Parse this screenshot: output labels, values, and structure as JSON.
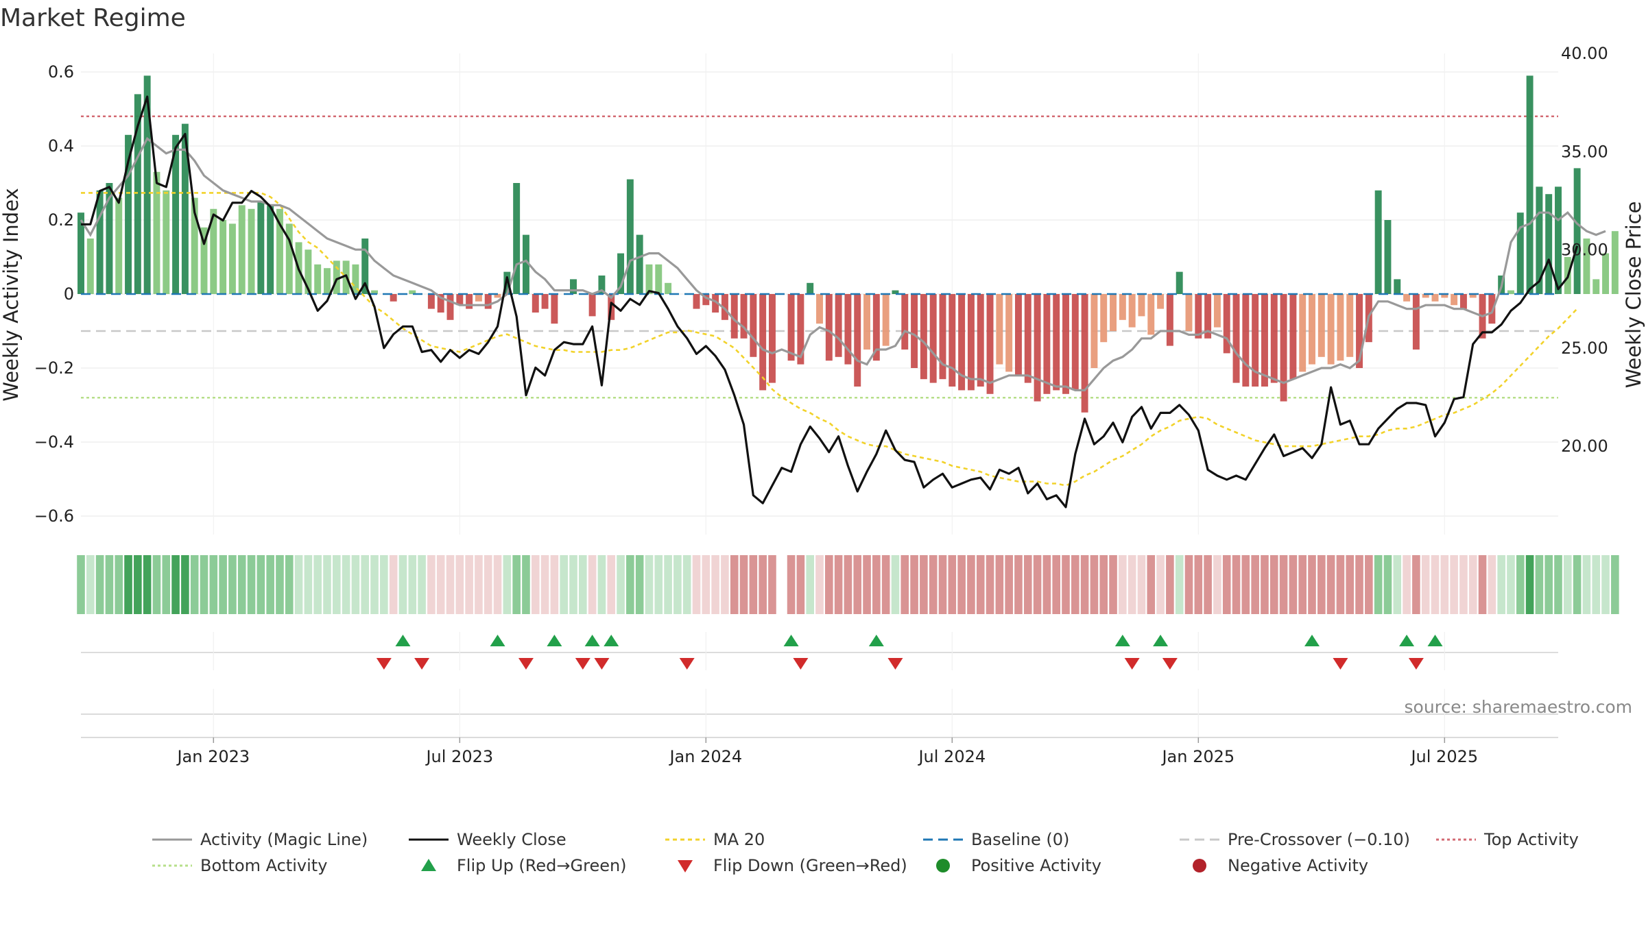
{
  "chart_data": {
    "type": "bar",
    "title": "Market Regime",
    "ylabel_left": "Weekly Activity Index",
    "ylabel_right": "Weekly Close Price",
    "source": "source: sharemaestro.com",
    "y_left": {
      "range": [
        -0.65,
        0.65
      ],
      "ticks": [
        0.6,
        0.4,
        0.2,
        0,
        -0.2,
        -0.4,
        -0.6
      ],
      "tick_labels": [
        "0.6",
        "0.4",
        "0.2",
        "0",
        "−0.2",
        "−0.4",
        "−0.6"
      ]
    },
    "y_right": {
      "range": [
        15.5,
        40.0
      ],
      "ticks": [
        40,
        35,
        30,
        25,
        20
      ],
      "tick_labels": [
        "40.00",
        "35.00",
        "30.00",
        "25.00",
        "20.00"
      ]
    },
    "x_range_weeks": [
      0,
      156
    ],
    "x_ticks": [
      {
        "label": "Jan 2023",
        "week": 14
      },
      {
        "label": "Jul 2023",
        "week": 40
      },
      {
        "label": "Jan 2024",
        "week": 66
      },
      {
        "label": "Jul 2024",
        "week": 92
      },
      {
        "label": "Jan 2025",
        "week": 118
      },
      {
        "label": "Jul 2025",
        "week": 144
      }
    ],
    "reference_lines": {
      "top_activity": 0.48,
      "pre_crossover": -0.1,
      "bottom_activity": -0.28,
      "baseline": 0
    },
    "activity": [
      0.22,
      0.15,
      0.28,
      0.3,
      0.26,
      0.43,
      0.54,
      0.59,
      0.33,
      0.28,
      0.43,
      0.46,
      0.26,
      0.18,
      0.23,
      0.2,
      0.19,
      0.24,
      0.23,
      0.25,
      0.24,
      0.23,
      0.19,
      0.14,
      0.12,
      0.08,
      0.07,
      0.09,
      0.09,
      0.08,
      0.15,
      0.01,
      0.0,
      -0.02,
      0.0,
      0.01,
      0.0,
      -0.04,
      -0.05,
      -0.07,
      -0.03,
      -0.04,
      -0.02,
      -0.04,
      -0.01,
      0.06,
      0.3,
      0.16,
      -0.05,
      -0.04,
      -0.08,
      0.0,
      0.04,
      0.0,
      -0.06,
      0.05,
      -0.07,
      0.11,
      0.31,
      0.16,
      0.08,
      0.08,
      0.03,
      0.0,
      0.0,
      -0.04,
      -0.03,
      -0.05,
      -0.07,
      -0.12,
      -0.12,
      -0.17,
      -0.26,
      -0.24,
      0.0,
      -0.18,
      -0.19,
      0.03,
      -0.08,
      -0.18,
      -0.17,
      -0.19,
      -0.25,
      -0.15,
      -0.18,
      -0.14,
      0.01,
      -0.15,
      -0.2,
      -0.23,
      -0.24,
      -0.23,
      -0.25,
      -0.26,
      -0.26,
      -0.25,
      -0.27,
      -0.19,
      -0.21,
      -0.22,
      -0.24,
      -0.29,
      -0.27,
      -0.26,
      -0.27,
      -0.26,
      -0.32,
      -0.2,
      -0.13,
      -0.1,
      -0.07,
      -0.09,
      -0.06,
      -0.11,
      -0.04,
      -0.14,
      0.06,
      -0.1,
      -0.12,
      -0.12,
      -0.09,
      -0.16,
      -0.24,
      -0.25,
      -0.25,
      -0.25,
      -0.24,
      -0.29,
      -0.23,
      -0.21,
      -0.19,
      -0.17,
      -0.19,
      -0.18,
      -0.17,
      -0.2,
      -0.13,
      0.28,
      0.2,
      0.04,
      -0.02,
      -0.15,
      -0.01,
      -0.02,
      -0.01,
      -0.03,
      -0.04,
      -0.01,
      -0.12,
      -0.08,
      0.05,
      0.01,
      0.22,
      0.59,
      0.29,
      0.27,
      0.29,
      0.1,
      0.34,
      0.15,
      0.04,
      0.11,
      0.17
    ],
    "weekly_close": [
      31.3,
      31.3,
      33.0,
      33.2,
      32.4,
      34.5,
      36.3,
      37.8,
      33.4,
      33.2,
      35.2,
      35.9,
      31.9,
      30.3,
      31.8,
      31.5,
      32.4,
      32.4,
      33.0,
      32.7,
      32.2,
      31.3,
      30.5,
      29.0,
      28.0,
      26.9,
      27.4,
      28.5,
      28.7,
      27.5,
      28.3,
      27.1,
      25.0,
      25.7,
      26.1,
      26.1,
      24.8,
      24.9,
      24.3,
      24.9,
      24.5,
      24.9,
      24.7,
      25.3,
      26.1,
      28.6,
      26.6,
      22.6,
      24.0,
      23.6,
      24.9,
      25.3,
      25.2,
      25.2,
      26.1,
      23.1,
      27.3,
      26.9,
      27.5,
      27.2,
      27.9,
      27.8,
      27.0,
      26.1,
      25.5,
      24.7,
      25.1,
      24.6,
      23.9,
      22.6,
      21.1,
      17.5,
      17.1,
      18.0,
      18.9,
      18.7,
      20.1,
      21.0,
      20.4,
      19.7,
      20.5,
      19.0,
      17.7,
      18.7,
      19.6,
      20.8,
      19.8,
      19.3,
      19.2,
      17.9,
      18.3,
      18.6,
      17.9,
      18.1,
      18.3,
      18.4,
      17.8,
      18.8,
      18.6,
      18.9,
      17.6,
      18.1,
      17.3,
      17.5,
      16.9,
      19.6,
      21.4,
      20.1,
      20.5,
      21.2,
      20.2,
      21.5,
      22.0,
      20.9,
      21.7,
      21.7,
      22.1,
      21.6,
      20.8,
      18.8,
      18.5,
      18.3,
      18.5,
      18.3,
      19.1,
      19.9,
      20.6,
      19.5,
      19.7,
      19.9,
      19.4,
      20.1,
      23.0,
      21.1,
      21.3,
      20.1,
      20.1,
      20.9,
      21.4,
      21.9,
      22.2,
      22.2,
      22.1,
      20.5,
      21.2,
      22.4,
      22.5,
      25.2,
      25.8,
      25.8,
      26.2,
      26.9,
      27.3,
      28.0,
      28.4,
      29.5,
      28.0,
      28.6,
      30.2
    ],
    "magic_line": [
      0.2,
      0.16,
      0.21,
      0.26,
      0.29,
      0.32,
      0.37,
      0.42,
      0.4,
      0.38,
      0.39,
      0.39,
      0.36,
      0.32,
      0.3,
      0.28,
      0.27,
      0.26,
      0.25,
      0.25,
      0.24,
      0.24,
      0.23,
      0.21,
      0.19,
      0.17,
      0.15,
      0.14,
      0.13,
      0.12,
      0.12,
      0.09,
      0.07,
      0.05,
      0.04,
      0.03,
      0.02,
      0.01,
      -0.01,
      -0.02,
      -0.03,
      -0.03,
      -0.03,
      -0.03,
      -0.02,
      0.0,
      0.08,
      0.09,
      0.06,
      0.04,
      0.01,
      0.01,
      0.01,
      0.01,
      0.0,
      0.01,
      -0.01,
      0.02,
      0.09,
      0.1,
      0.11,
      0.11,
      0.09,
      0.07,
      0.04,
      0.01,
      -0.01,
      -0.02,
      -0.04,
      -0.07,
      -0.09,
      -0.12,
      -0.15,
      -0.16,
      -0.15,
      -0.16,
      -0.17,
      -0.11,
      -0.09,
      -0.1,
      -0.12,
      -0.15,
      -0.18,
      -0.19,
      -0.15,
      -0.15,
      -0.14,
      -0.1,
      -0.11,
      -0.13,
      -0.16,
      -0.19,
      -0.2,
      -0.22,
      -0.23,
      -0.23,
      -0.24,
      -0.23,
      -0.22,
      -0.22,
      -0.22,
      -0.23,
      -0.24,
      -0.25,
      -0.25,
      -0.26,
      -0.26,
      -0.23,
      -0.2,
      -0.18,
      -0.17,
      -0.15,
      -0.12,
      -0.12,
      -0.1,
      -0.1,
      -0.1,
      -0.11,
      -0.11,
      -0.1,
      -0.11,
      -0.12,
      -0.16,
      -0.19,
      -0.21,
      -0.22,
      -0.23,
      -0.24,
      -0.23,
      -0.22,
      -0.21,
      -0.2,
      -0.2,
      -0.19,
      -0.2,
      -0.18,
      -0.06,
      -0.02,
      -0.02,
      -0.03,
      -0.04,
      -0.04,
      -0.03,
      -0.03,
      -0.03,
      -0.04,
      -0.04,
      -0.05,
      -0.06,
      -0.05,
      0.02,
      0.14,
      0.18,
      0.19,
      0.22,
      0.22,
      0.2,
      0.22,
      0.19,
      0.17,
      0.16,
      0.17
    ],
    "ma20": [
      32.9,
      32.9,
      32.9,
      32.9,
      32.9,
      32.9,
      32.9,
      32.9,
      32.9,
      32.9,
      32.9,
      32.9,
      32.9,
      32.9,
      32.9,
      32.9,
      32.9,
      32.9,
      32.9,
      32.9,
      32.7,
      32.3,
      31.6,
      30.9,
      30.4,
      30.1,
      29.6,
      29.1,
      28.6,
      28.1,
      27.6,
      27.1,
      26.8,
      26.4,
      26.0,
      25.7,
      25.4,
      25.1,
      25.0,
      24.9,
      24.8,
      25.0,
      25.2,
      25.4,
      25.6,
      25.7,
      25.5,
      25.3,
      25.1,
      25.0,
      24.9,
      24.9,
      24.8,
      24.8,
      24.8,
      24.8,
      24.9,
      24.9,
      25.0,
      25.2,
      25.4,
      25.6,
      25.8,
      25.8,
      25.9,
      25.8,
      25.7,
      25.6,
      25.3,
      25.0,
      24.5,
      24.0,
      23.5,
      22.9,
      22.5,
      22.2,
      21.9,
      21.7,
      21.4,
      21.2,
      20.8,
      20.5,
      20.3,
      20.1,
      20.0,
      20.0,
      19.8,
      19.6,
      19.5,
      19.4,
      19.3,
      19.2,
      19.0,
      18.9,
      18.8,
      18.7,
      18.5,
      18.4,
      18.3,
      18.2,
      18.2,
      18.2,
      18.1,
      18.1,
      18.0,
      18.2,
      18.5,
      18.7,
      19.0,
      19.3,
      19.5,
      19.8,
      20.1,
      20.5,
      20.8,
      21.0,
      21.3,
      21.4,
      21.5,
      21.4,
      21.1,
      20.9,
      20.7,
      20.5,
      20.3,
      20.2,
      20.1,
      20.0,
      20.0,
      20.0,
      20.0,
      20.1,
      20.2,
      20.3,
      20.4,
      20.5,
      20.5,
      20.6,
      20.8,
      20.9,
      20.9,
      21.0,
      21.2,
      21.4,
      21.6,
      21.7,
      21.9,
      22.1,
      22.4,
      22.7,
      23.1,
      23.6,
      24.1,
      24.6,
      25.1,
      25.6,
      26.0,
      26.5,
      27.0
    ],
    "flip_up_weeks": [
      34,
      44,
      50,
      54,
      56,
      75,
      84,
      110,
      114,
      130,
      140,
      143
    ],
    "flip_down_weeks": [
      32,
      36,
      47,
      53,
      55,
      64,
      76,
      86,
      111,
      115,
      133,
      141
    ],
    "regime_strip": {
      "description_colors": [
        "strong-green",
        "green",
        "light-green",
        "pale-red",
        "red"
      ],
      "colors": {
        "strong_green": "#43a35a",
        "green": "#8ccb97",
        "light_green": "#c6e6cc",
        "pale_red": "#f0d4d4",
        "red": "#d99494"
      }
    },
    "colors": {
      "positive_strong": "#2e8b57",
      "positive_light": "#86c77e",
      "negative_strong": "#c85050",
      "negative_light": "#e89a78",
      "magic_line": "#999999",
      "weekly_close": "#111111",
      "ma20": "#f2d22a",
      "baseline": "#1f77b4",
      "pre_crossover": "#c8c8c8",
      "top_activity": "#d36a73",
      "bottom_activity": "#b7df8a",
      "flip_up": "#22a04a",
      "flip_down": "#d12b2b",
      "positive_dot": "#1e8c2a",
      "negative_dot": "#b2222a"
    }
  },
  "legend": [
    {
      "label": "Activity (Magic Line)",
      "type": "line",
      "color": "#999999",
      "dash": ""
    },
    {
      "label": "Weekly Close",
      "type": "line",
      "color": "#111111",
      "dash": ""
    },
    {
      "label": "MA 20",
      "type": "line",
      "color": "#f2d22a",
      "dash": "6,5"
    },
    {
      "label": "Baseline (0)",
      "type": "line",
      "color": "#1f77b4",
      "dash": "14,8"
    },
    {
      "label": "Pre-Crossover (−0.10)",
      "type": "line",
      "color": "#c8c8c8",
      "dash": "14,8"
    },
    {
      "label": "Top Activity",
      "type": "line",
      "color": "#d36a73",
      "dash": "4,4"
    },
    {
      "label": "Bottom Activity",
      "type": "line",
      "color": "#b7df8a",
      "dash": "4,4"
    },
    {
      "label": "Flip Up (Red→Green)",
      "type": "tri-up",
      "color": "#22a04a"
    },
    {
      "label": "Flip Down (Green→Red)",
      "type": "tri-down",
      "color": "#d12b2b"
    },
    {
      "label": "Positive Activity",
      "type": "dot",
      "color": "#1e8c2a"
    },
    {
      "label": "Negative Activity",
      "type": "dot",
      "color": "#b2222a"
    }
  ]
}
